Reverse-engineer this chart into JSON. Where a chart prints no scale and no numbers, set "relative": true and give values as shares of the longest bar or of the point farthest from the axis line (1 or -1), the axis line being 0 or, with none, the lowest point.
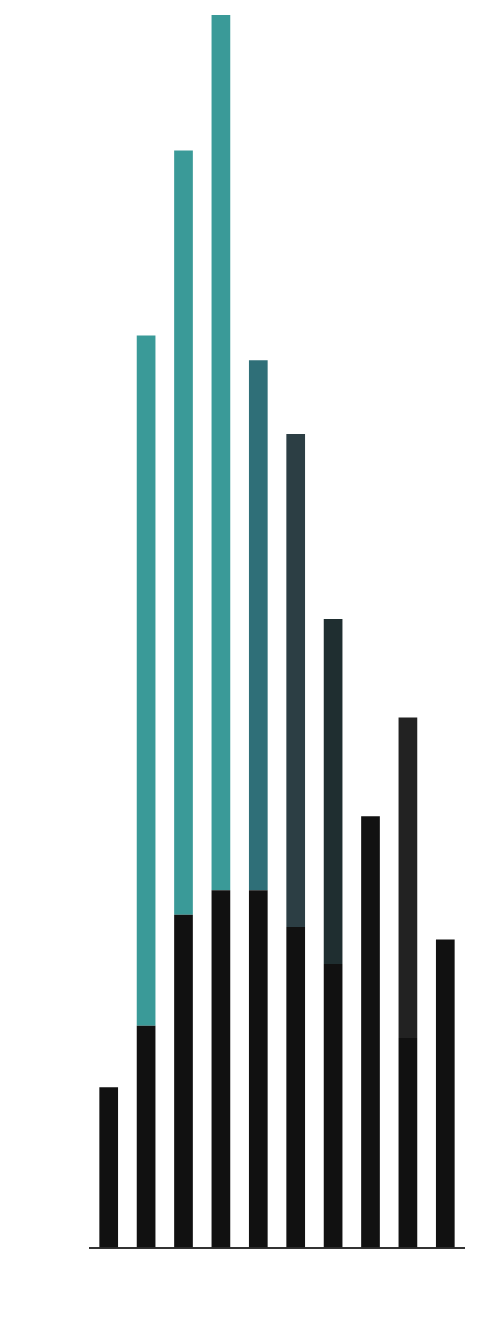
{
  "chart_data": {
    "type": "bar",
    "relative": true,
    "stacked": true,
    "grid": false,
    "legend": false,
    "categories": [
      null,
      null,
      null,
      null,
      null,
      null,
      null,
      null,
      null,
      null
    ],
    "series": [
      {
        "color": "#111111",
        "values": [
          0.13,
          0.18,
          0.27,
          0.29,
          0.29,
          0.26,
          0.23,
          0.35,
          0.17,
          0.25
        ]
      },
      {
        "colors": [
          "#3a9a98",
          "#3a9a98",
          "#3a9a98",
          "#3a9a98",
          "#2f6f78",
          "#2c3e44",
          "#1f2e30",
          "#222222",
          "#222222",
          "#222222"
        ],
        "values": [
          0,
          0.56,
          0.62,
          0.71,
          0.43,
          0.4,
          0.28,
          0,
          0.26,
          0
        ]
      }
    ]
  }
}
